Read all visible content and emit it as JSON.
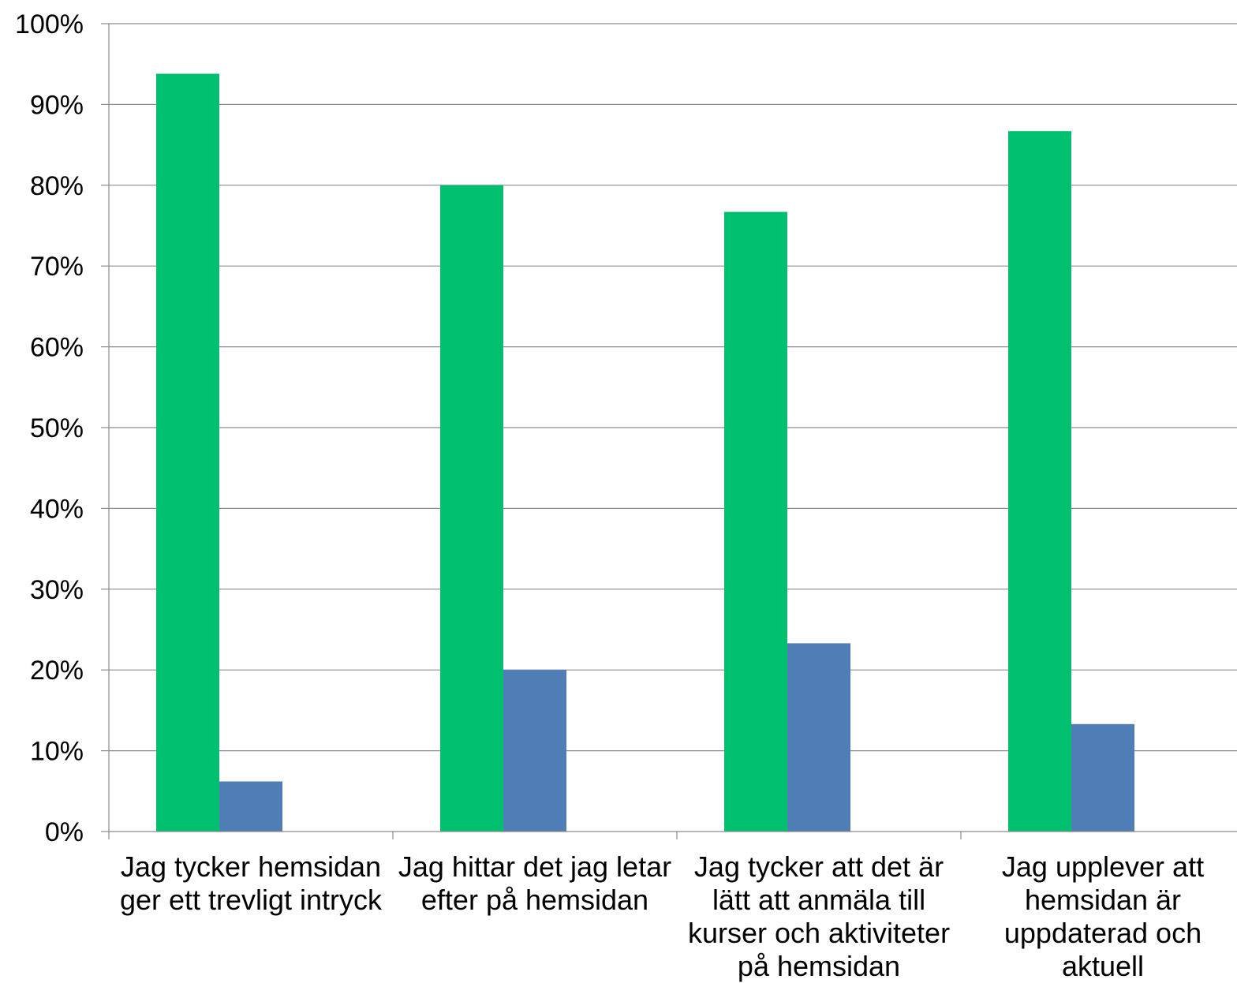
{
  "chart_data": {
    "type": "bar",
    "title": "",
    "xlabel": "",
    "ylabel": "",
    "ylim": [
      0,
      100
    ],
    "y_ticks": [
      "0%",
      "10%",
      "20%",
      "30%",
      "40%",
      "50%",
      "60%",
      "70%",
      "80%",
      "90%",
      "100%"
    ],
    "grid": true,
    "legend": "none",
    "categories": [
      [
        "Jag tycker hemsidan",
        "ger ett trevligt intryck"
      ],
      [
        "Jag hittar det jag letar",
        "efter på hemsidan"
      ],
      [
        "Jag tycker att det är",
        "lätt att anmäla till",
        "kurser och aktiviteter",
        "på hemsidan"
      ],
      [
        "Jag upplever att",
        "hemsidan är",
        "uppdaterad och",
        "aktuell"
      ]
    ],
    "series": [
      {
        "values": [
          93.8,
          80.0,
          76.7,
          86.7
        ],
        "color": "#00BF6F"
      },
      {
        "values": [
          6.2,
          20.0,
          23.3,
          13.3
        ],
        "color": "#4F7DB5"
      }
    ]
  }
}
